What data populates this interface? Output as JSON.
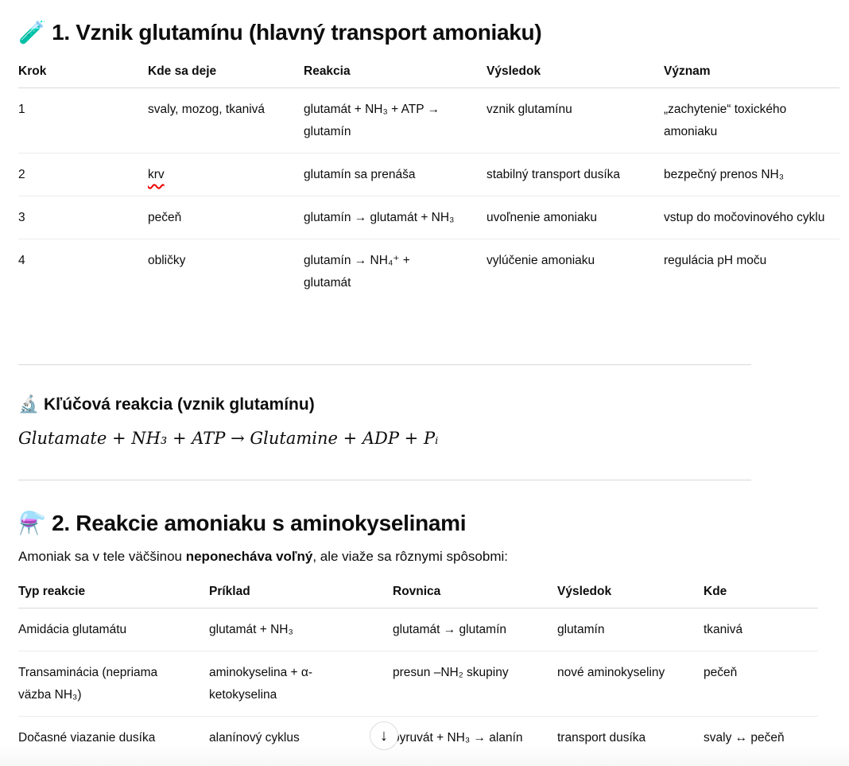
{
  "section1": {
    "icon": "test-tube",
    "title": "1. Vznik glutamínu (hlavný transport amoniaku)",
    "headers": [
      "Krok",
      "Kde sa deje",
      "Reakcia",
      "Výsledok",
      "Význam"
    ],
    "rows": [
      [
        "1",
        "svaly, mozog, tkanivá",
        "glutamát + NH₃ + ATP → glutamín",
        "vznik glutamínu",
        "„zachytenie“ toxického amoniaku"
      ],
      [
        "2",
        "krv",
        "glutamín sa prenáša",
        "stabilný transport dusíka",
        "bezpečný prenos NH₃"
      ],
      [
        "3",
        "pečeň",
        "glutamín → glutamát + NH₃",
        "uvoľnenie amoniaku",
        "vstup do močovinového cyklu"
      ],
      [
        "4",
        "obličky",
        "glutamín → NH₄⁺ + glutamát",
        "vylúčenie amoniaku",
        "regulácia pH moču"
      ]
    ]
  },
  "key_reaction": {
    "icon": "microscope",
    "title": "Kľúčová reakcia (vznik glutamínu)",
    "equation": "Glutamate + NH₃ + ATP → Glutamine + ADP + Pᵢ"
  },
  "section2": {
    "icon": "alembic",
    "title": "2. Reakcie amoniaku s aminokyselinami",
    "intro_before": "Amoniak sa v tele väčšinou ",
    "intro_bold": "neponecháva voľný",
    "intro_after": ", ale viaže sa rôznymi spôsobmi:",
    "headers": [
      "Typ reakcie",
      "Príklad",
      "Rovnica",
      "Výsledok",
      "Kde"
    ],
    "rows": [
      [
        "Amidácia glutamátu",
        "glutamát + NH₃",
        "glutamát → glutamín",
        "glutamín",
        "tkanivá"
      ],
      [
        "Transaminácia (nepriama väzba NH₃)",
        "aminokyselina + α-ketokyselina",
        "presun –NH₂ skupiny",
        "nové aminokyseliny",
        "pečeň"
      ],
      [
        "Dočasné viazanie dusíka",
        "alanínový cyklus",
        "pyruvát + NH₃ → alanín",
        "transport dusíka",
        "svaly ↔ pečeň"
      ]
    ]
  },
  "scroll_button_icon": "arrow-down"
}
